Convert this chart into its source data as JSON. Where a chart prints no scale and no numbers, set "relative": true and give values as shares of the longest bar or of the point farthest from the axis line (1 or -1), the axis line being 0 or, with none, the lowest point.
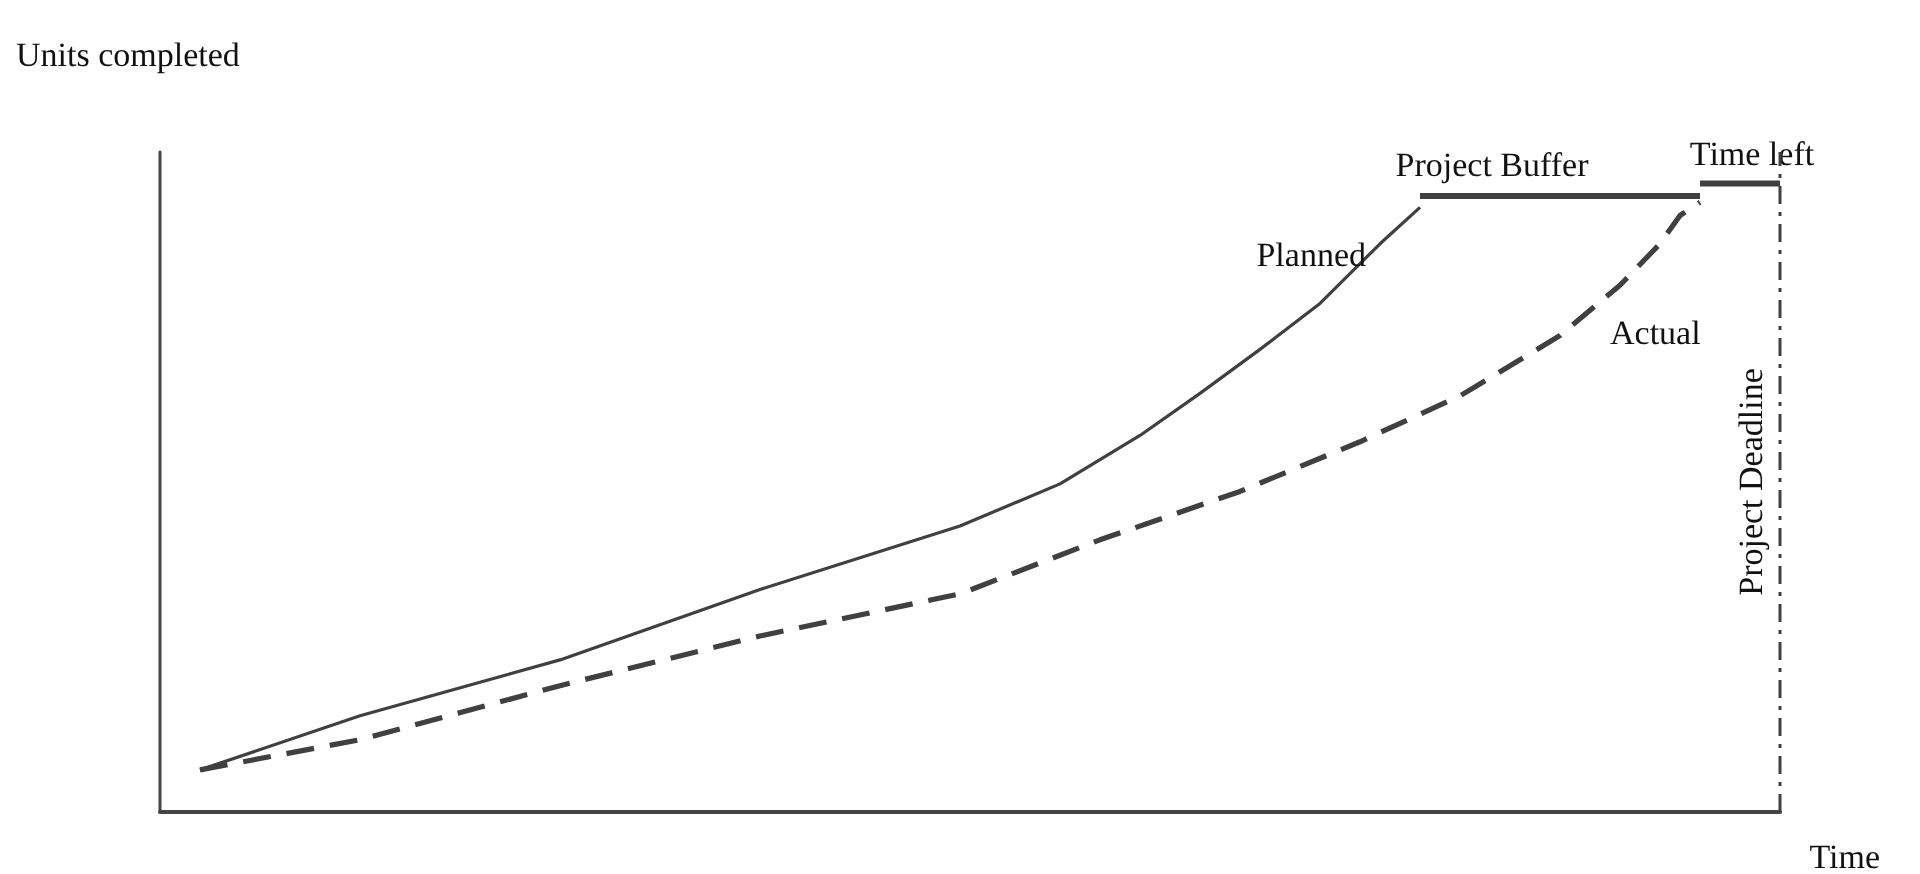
{
  "chart_data": {
    "type": "line",
    "relative": true,
    "xlabel": "Time",
    "ylabel": "Units completed",
    "grid": false,
    "legend": false,
    "marker": "none",
    "categories": [
      null,
      null,
      null,
      null,
      null,
      null,
      null,
      null,
      null,
      null,
      null,
      null,
      null,
      null,
      null,
      null,
      null,
      null,
      null,
      null,
      null,
      null,
      null,
      null,
      null,
      null,
      null,
      null,
      null,
      null,
      null,
      null,
      null,
      null,
      null,
      null,
      null,
      null,
      null,
      null,
      null,
      null,
      null,
      null,
      null,
      null,
      null,
      null,
      null,
      null,
      null,
      null,
      null,
      null,
      null,
      null,
      null,
      null,
      null,
      null,
      null,
      null,
      null,
      null,
      null,
      null,
      null,
      null,
      null,
      null,
      null,
      null,
      null,
      null,
      null,
      null,
      null,
      null,
      null,
      null,
      null,
      null
    ],
    "series": [
      {
        "name": "Planned",
        "color": "#404040",
        "line_style": "solid",
        "values": [
          null,
          null,
          0.067,
          null,
          null,
          null,
          null,
          null,
          null,
          null,
          0.153,
          null,
          null,
          null,
          null,
          null,
          null,
          null,
          null,
          null,
          0.242,
          null,
          null,
          null,
          null,
          null,
          null,
          null,
          null,
          null,
          0.354,
          null,
          null,
          null,
          null,
          null,
          null,
          null,
          null,
          null,
          0.455,
          null,
          null,
          null,
          null,
          0.522,
          null,
          null,
          null,
          0.599,
          null,
          null,
          0.666,
          null,
          null,
          0.736,
          null,
          null,
          0.809,
          null,
          null,
          0.904,
          null,
          0.962,
          null,
          null,
          null,
          null,
          null,
          null,
          null,
          null,
          null,
          null,
          null,
          null,
          null,
          null,
          null,
          null,
          null,
          null
        ]
      },
      {
        "name": "Actual",
        "color": "#404040",
        "line_style": "dashed",
        "values": [
          null,
          null,
          0.067,
          null,
          null,
          null,
          null,
          null,
          null,
          null,
          0.115,
          null,
          null,
          null,
          null,
          null,
          null,
          null,
          null,
          null,
          0.201,
          null,
          null,
          null,
          null,
          null,
          null,
          null,
          null,
          null,
          0.28,
          null,
          null,
          null,
          null,
          null,
          null,
          null,
          null,
          null,
          0.347,
          null,
          null,
          null,
          null,
          null,
          null,
          0.433,
          null,
          null,
          null,
          null,
          null,
          null,
          0.51,
          null,
          null,
          null,
          null,
          null,
          0.589,
          null,
          null,
          null,
          null,
          0.662,
          null,
          null,
          null,
          null,
          0.758,
          null,
          null,
          0.838,
          null,
          0.904,
          0.949,
          0.97,
          null,
          null,
          null,
          null
        ]
      },
      {
        "name": "Project Buffer",
        "color": "#404040",
        "line_style": "solid",
        "values": [
          null,
          null,
          null,
          null,
          null,
          null,
          null,
          null,
          null,
          null,
          null,
          null,
          null,
          null,
          null,
          null,
          null,
          null,
          null,
          null,
          null,
          null,
          null,
          null,
          null,
          null,
          null,
          null,
          null,
          null,
          null,
          null,
          null,
          null,
          null,
          null,
          null,
          null,
          null,
          null,
          null,
          null,
          null,
          null,
          null,
          null,
          null,
          null,
          null,
          null,
          null,
          null,
          null,
          null,
          null,
          null,
          null,
          null,
          null,
          null,
          null,
          null,
          null,
          0.98,
          null,
          null,
          null,
          null,
          null,
          null,
          null,
          null,
          null,
          null,
          null,
          null,
          null,
          0.98,
          null,
          null,
          null,
          null
        ]
      },
      {
        "name": "Time left",
        "color": "#404040",
        "line_style": "solid",
        "values": [
          null,
          null,
          null,
          null,
          null,
          null,
          null,
          null,
          null,
          null,
          null,
          null,
          null,
          null,
          null,
          null,
          null,
          null,
          null,
          null,
          null,
          null,
          null,
          null,
          null,
          null,
          null,
          null,
          null,
          null,
          null,
          null,
          null,
          null,
          null,
          null,
          null,
          null,
          null,
          null,
          null,
          null,
          null,
          null,
          null,
          null,
          null,
          null,
          null,
          null,
          null,
          null,
          null,
          null,
          null,
          null,
          null,
          null,
          null,
          null,
          null,
          null,
          null,
          null,
          null,
          null,
          null,
          null,
          null,
          null,
          null,
          null,
          null,
          null,
          null,
          null,
          null,
          1,
          null,
          null,
          null,
          1
        ]
      }
    ],
    "annotations": [
      "Project Deadline"
    ]
  }
}
